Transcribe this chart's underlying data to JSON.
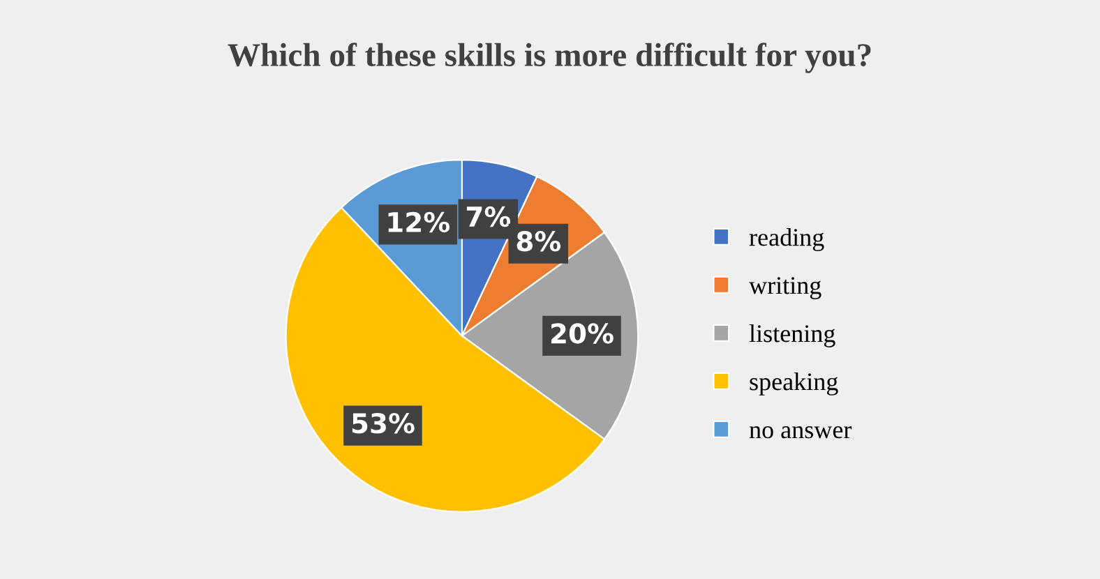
{
  "chart_data": {
    "type": "pie",
    "title": "Which of these skills is more difficult for you?",
    "categories": [
      "reading",
      "writing",
      "listening",
      "speaking",
      "no answer"
    ],
    "values": [
      7,
      8,
      20,
      53,
      12
    ],
    "colors": [
      "#4472c4",
      "#ed7d31",
      "#a5a5a5",
      "#ffc000",
      "#5b9bd5"
    ],
    "value_labels": [
      "7%",
      "8%",
      "20%",
      "53%",
      "12%"
    ],
    "legend": "right"
  }
}
